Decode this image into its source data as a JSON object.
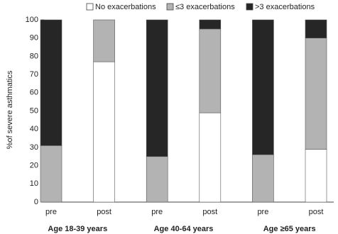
{
  "chart_data": {
    "type": "stacked-bar",
    "y_label": "%of severe asthmatics",
    "categories": [
      "pre",
      "post",
      "pre",
      "post",
      "pre",
      "post"
    ],
    "group_labels": [
      "Age 18-39 years",
      "Age 40-64 years",
      "Age ≥65 years"
    ],
    "series": [
      {
        "name": "No exacerbations",
        "color": "#ffffff",
        "values": [
          0,
          77,
          0,
          49,
          0,
          29
        ]
      },
      {
        "name": "≤3 exacerbations",
        "color": "#b3b3b3",
        "values": [
          31,
          23,
          25,
          46,
          26,
          61
        ]
      },
      {
        "name": ">3 exacerbations",
        "color": "#262626",
        "values": [
          69,
          0,
          75,
          5,
          74,
          10
        ]
      }
    ],
    "ylim": [
      0,
      100
    ],
    "yticks": [
      0,
      10,
      20,
      30,
      40,
      50,
      60,
      70,
      80,
      90,
      100
    ]
  }
}
